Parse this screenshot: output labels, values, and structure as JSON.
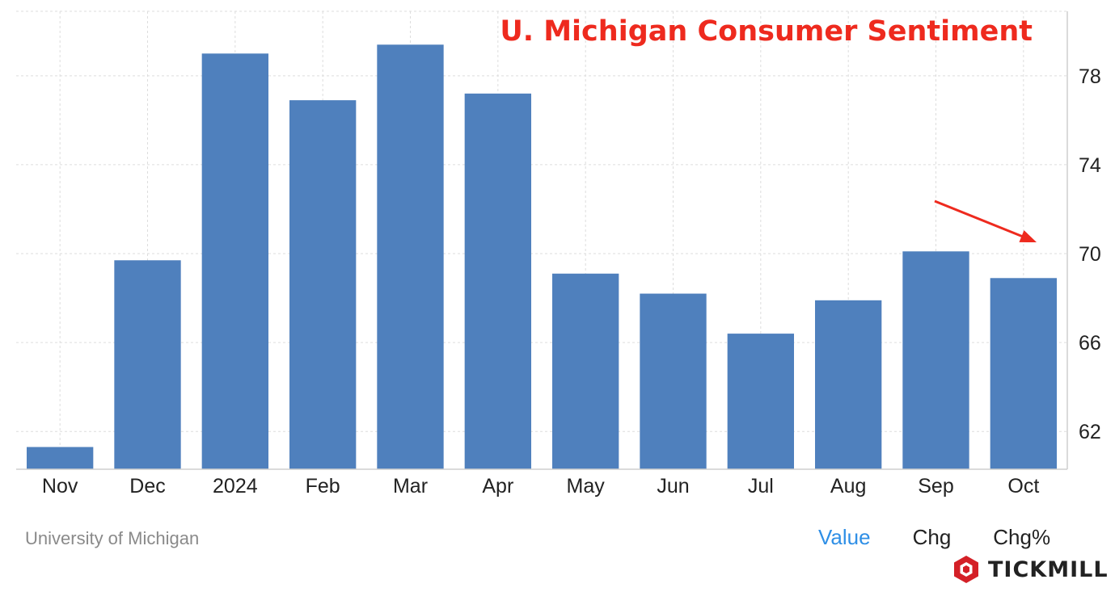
{
  "chart_data": {
    "type": "bar",
    "title": "U. Michigan Consumer Sentiment",
    "categories": [
      "Nov",
      "Dec",
      "2024",
      "Feb",
      "Mar",
      "Apr",
      "May",
      "Jun",
      "Jul",
      "Aug",
      "Sep",
      "Oct"
    ],
    "values": [
      61.3,
      69.7,
      79.0,
      76.9,
      79.4,
      77.2,
      69.1,
      68.2,
      66.4,
      67.9,
      70.1,
      68.9
    ],
    "xlabel": "",
    "ylabel": "",
    "ylim": [
      60.3,
      80.9
    ],
    "yticks": [
      62,
      66,
      70,
      74,
      78
    ],
    "ytick_labels": [
      "62",
      "66",
      "70",
      "74",
      "78"
    ],
    "grid": true,
    "y_axis_side": "right",
    "annotation": {
      "type": "arrow",
      "from_category": "Sep",
      "to_category": "Oct",
      "color": "#ee2a1e"
    },
    "colors": {
      "bar": "#4f80bd",
      "title": "#ee2a1e",
      "grid": "#dddddd"
    }
  },
  "footer": {
    "source": "University of Michigan",
    "tabs": [
      {
        "label": "Value",
        "active": true
      },
      {
        "label": "Chg",
        "active": false
      },
      {
        "label": "Chg%",
        "active": false
      }
    ]
  },
  "branding": {
    "logo_text": "TICKMILL",
    "logo_icon": "tickmill-hexagon-icon",
    "logo_color": "#d42027"
  }
}
